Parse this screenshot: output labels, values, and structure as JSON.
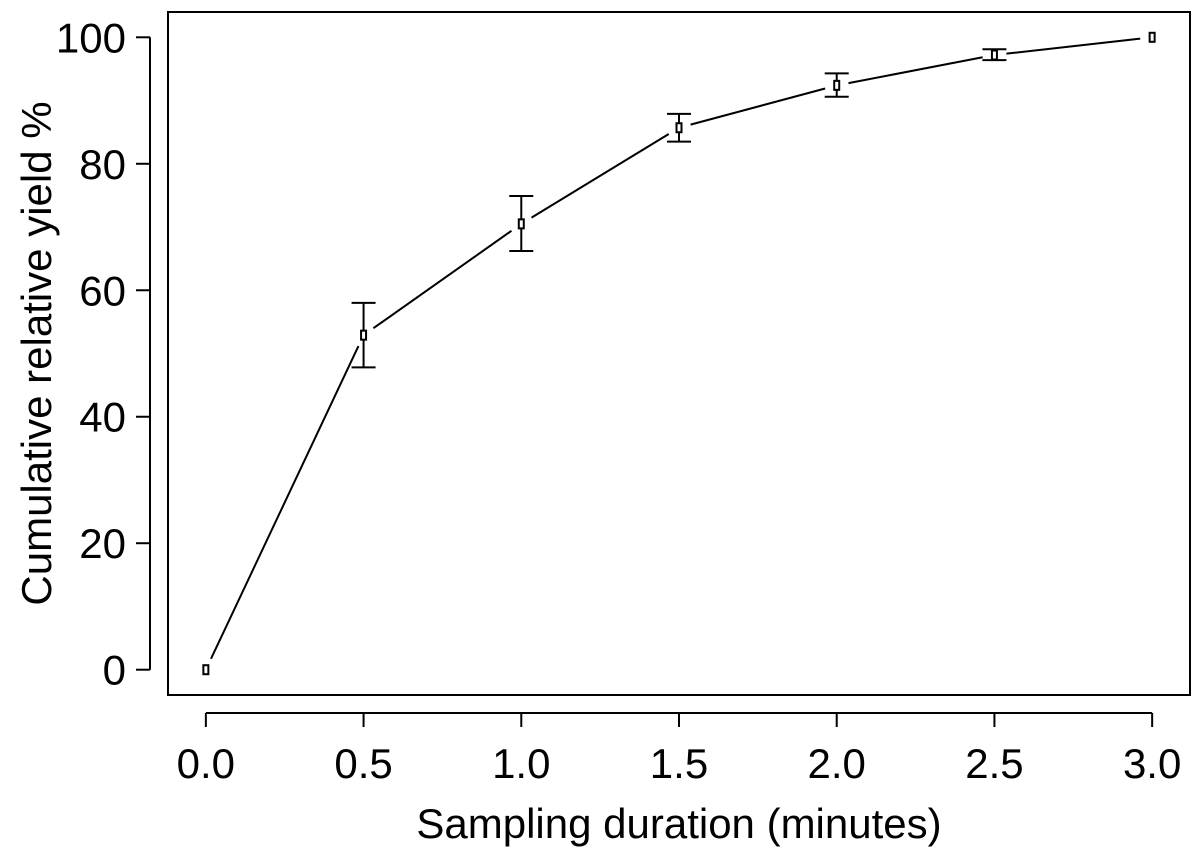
{
  "chart_data": {
    "type": "line",
    "title": "",
    "xlabel": "Sampling duration (minutes)",
    "ylabel": "Cumulative relative yield %",
    "xlim": [
      -0.12,
      3.12
    ],
    "ylim": [
      -4,
      104
    ],
    "x_ticks": [
      0.0,
      0.5,
      1.0,
      1.5,
      2.0,
      2.5,
      3.0
    ],
    "x_tick_labels": [
      "0.0",
      "0.5",
      "1.0",
      "1.5",
      "2.0",
      "2.5",
      "3.0"
    ],
    "y_ticks": [
      0,
      20,
      40,
      60,
      80,
      100
    ],
    "y_tick_labels": [
      "0",
      "20",
      "40",
      "60",
      "80",
      "100"
    ],
    "grid": false,
    "series": [
      {
        "name": "Cumulative relative yield",
        "x": [
          0.0,
          0.5,
          1.0,
          1.5,
          2.0,
          2.5,
          3.0
        ],
        "y": [
          0.0,
          52.9,
          70.5,
          85.7,
          92.4,
          97.2,
          100.0
        ],
        "error_low": [
          0.0,
          47.8,
          66.2,
          83.5,
          90.6,
          96.4,
          100.0
        ],
        "error_high": [
          0.0,
          58.0,
          74.9,
          87.9,
          94.3,
          98.1,
          100.0
        ],
        "marker": "small-rectangle",
        "color": "#000000"
      }
    ]
  }
}
